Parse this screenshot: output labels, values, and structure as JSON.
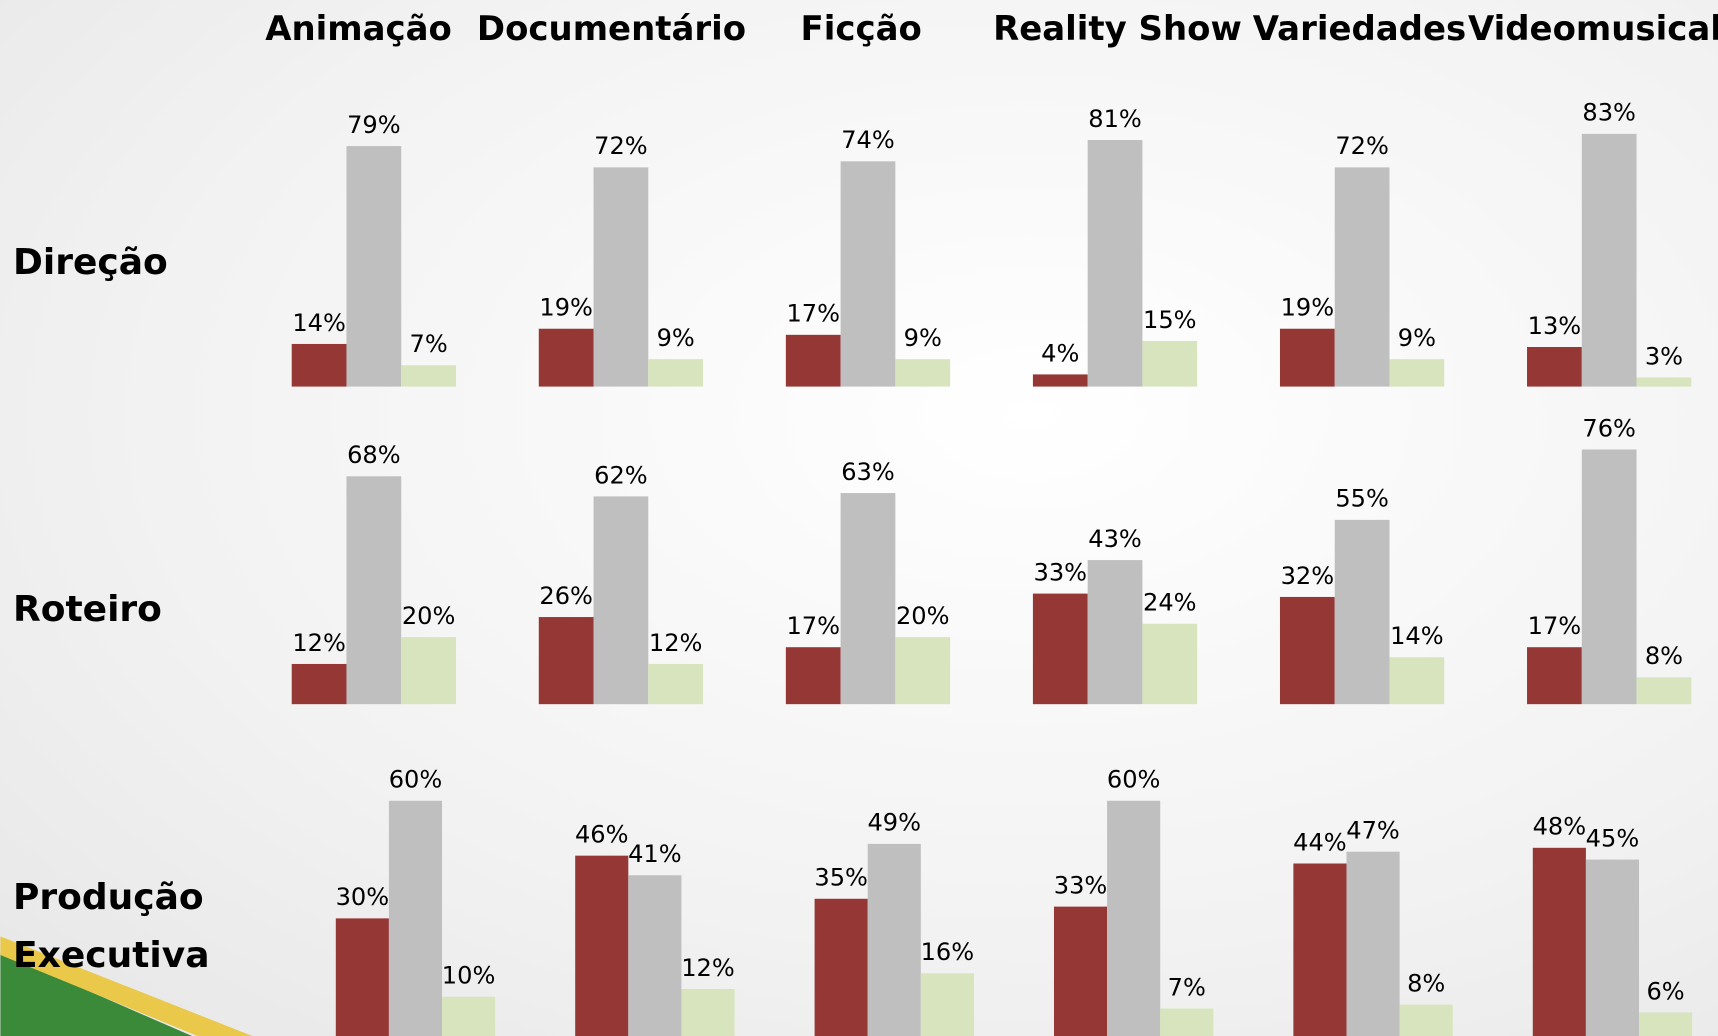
{
  "chart_data": {
    "type": "bar",
    "columns": [
      "Animação",
      "Documentário",
      "Ficção",
      "Reality Show",
      "Variedades",
      "Videomusical"
    ],
    "rows": [
      "Direção",
      "Roteiro",
      "Produção Executiva"
    ],
    "colors": [
      "#953735",
      "#bfbfbf",
      "#d7e4bd"
    ],
    "panels": [
      [
        {
          "values": [
            14,
            79,
            7
          ],
          "value_labels": [
            "14%",
            "79%",
            "7%"
          ]
        },
        {
          "values": [
            19,
            72,
            9
          ],
          "value_labels": [
            "19%",
            "72%",
            "9%"
          ]
        },
        {
          "values": [
            17,
            74,
            9
          ],
          "value_labels": [
            "17%",
            "74%",
            "9%"
          ]
        },
        {
          "values": [
            4,
            81,
            15
          ],
          "value_labels": [
            "4%",
            "81%",
            "15%"
          ]
        },
        {
          "values": [
            19,
            72,
            9
          ],
          "value_labels": [
            "19%",
            "72%",
            "9%"
          ]
        },
        {
          "values": [
            13,
            83,
            3
          ],
          "value_labels": [
            "13%",
            "83%",
            "3%"
          ]
        }
      ],
      [
        {
          "values": [
            12,
            68,
            20
          ],
          "value_labels": [
            "12%",
            "68%",
            "20%"
          ]
        },
        {
          "values": [
            26,
            62,
            12
          ],
          "value_labels": [
            "26%",
            "62%",
            "12%"
          ]
        },
        {
          "values": [
            17,
            63,
            20
          ],
          "value_labels": [
            "17%",
            "63%",
            "20%"
          ]
        },
        {
          "values": [
            33,
            43,
            24
          ],
          "value_labels": [
            "33%",
            "43%",
            "24%"
          ]
        },
        {
          "values": [
            32,
            55,
            14
          ],
          "value_labels": [
            "32%",
            "55%",
            "14%"
          ]
        },
        {
          "values": [
            17,
            76,
            8
          ],
          "value_labels": [
            "17%",
            "76%",
            "8%"
          ]
        }
      ],
      [
        {
          "values": [
            30,
            60,
            10
          ],
          "value_labels": [
            "30%",
            "60%",
            "10%"
          ]
        },
        {
          "values": [
            46,
            41,
            12
          ],
          "value_labels": [
            "46%",
            "41%",
            "12%"
          ]
        },
        {
          "values": [
            35,
            49,
            16
          ],
          "value_labels": [
            "35%",
            "49%",
            "16%"
          ]
        },
        {
          "values": [
            33,
            60,
            7
          ],
          "value_labels": [
            "33%",
            "60%",
            "7%"
          ]
        },
        {
          "values": [
            44,
            47,
            8
          ],
          "value_labels": [
            "44%",
            "47%",
            "8%"
          ]
        },
        {
          "values": [
            48,
            45,
            6
          ],
          "value_labels": [
            "48%",
            "45%",
            "6%"
          ]
        }
      ]
    ]
  }
}
